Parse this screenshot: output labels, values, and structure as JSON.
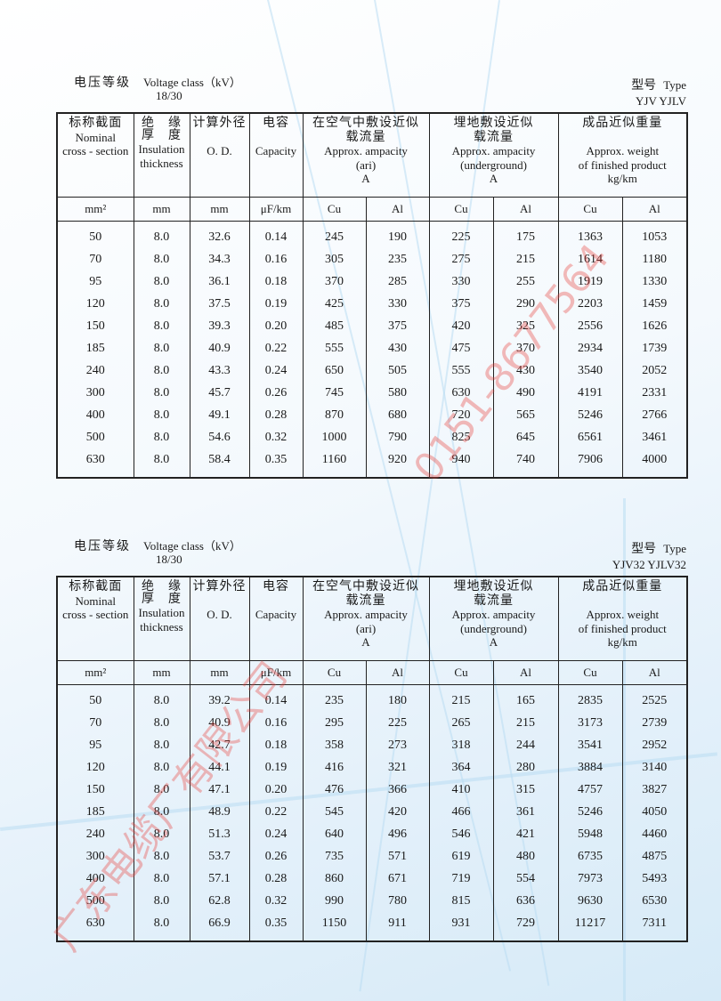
{
  "watermark": {
    "company": "广东电缆厂有限公司",
    "phone": "0151-8677564"
  },
  "headers": {
    "nominal": {
      "zh": "标称截面",
      "en1": "Nominal",
      "en2": "cross - section",
      "unit": "mm²"
    },
    "insulation": {
      "zh1": "绝　缘",
      "zh2": "厚　度",
      "en1": "Insulation",
      "en2": "thickness",
      "unit": "mm"
    },
    "od": {
      "zh": "计算外径",
      "en": "O. D.",
      "unit": "mm"
    },
    "capacity": {
      "zh": "电容",
      "en": "Capacity",
      "unit": "μF/km"
    },
    "air": {
      "zh1": "在空气中敷设近似",
      "zh2": "载流量",
      "en1": "Approx. ampacity",
      "en2": "(ari)",
      "unit": "A"
    },
    "underground": {
      "zh1": "埋地敷设近似",
      "zh2": "载流量",
      "en1": "Approx. ampacity",
      "en2": "(underground)",
      "unit": "A"
    },
    "weight": {
      "zh": "成品近似重量",
      "en1": "Approx. weight",
      "en2": "of finished product",
      "unit": "kg/km"
    },
    "cu": "Cu",
    "al": "Al"
  },
  "tables": [
    {
      "voltage_label_zh": "电压等级",
      "voltage_label_en": "Voltage class（kV）",
      "voltage_value": "18/30",
      "type_label_zh": "型号",
      "type_label_en": "Type",
      "type_value": "YJV  YJLV",
      "rows": [
        [
          "50",
          "8.0",
          "32.6",
          "0.14",
          "245",
          "190",
          "225",
          "175",
          "1363",
          "1053"
        ],
        [
          "70",
          "8.0",
          "34.3",
          "0.16",
          "305",
          "235",
          "275",
          "215",
          "1614",
          "1180"
        ],
        [
          "95",
          "8.0",
          "36.1",
          "0.18",
          "370",
          "285",
          "330",
          "255",
          "1919",
          "1330"
        ],
        [
          "120",
          "8.0",
          "37.5",
          "0.19",
          "425",
          "330",
          "375",
          "290",
          "2203",
          "1459"
        ],
        [
          "150",
          "8.0",
          "39.3",
          "0.20",
          "485",
          "375",
          "420",
          "325",
          "2556",
          "1626"
        ],
        [
          "185",
          "8.0",
          "40.9",
          "0.22",
          "555",
          "430",
          "475",
          "370",
          "2934",
          "1739"
        ],
        [
          "240",
          "8.0",
          "43.3",
          "0.24",
          "650",
          "505",
          "555",
          "430",
          "3540",
          "2052"
        ],
        [
          "300",
          "8.0",
          "45.7",
          "0.26",
          "745",
          "580",
          "630",
          "490",
          "4191",
          "2331"
        ],
        [
          "400",
          "8.0",
          "49.1",
          "0.28",
          "870",
          "680",
          "720",
          "565",
          "5246",
          "2766"
        ],
        [
          "500",
          "8.0",
          "54.6",
          "0.32",
          "1000",
          "790",
          "825",
          "645",
          "6561",
          "3461"
        ],
        [
          "630",
          "8.0",
          "58.4",
          "0.35",
          "1160",
          "920",
          "940",
          "740",
          "7906",
          "4000"
        ]
      ]
    },
    {
      "voltage_label_zh": "电压等级",
      "voltage_label_en": "Voltage class（kV）",
      "voltage_value": "18/30",
      "type_label_zh": "型号",
      "type_label_en": "Type",
      "type_value": "YJV32  YJLV32",
      "rows": [
        [
          "50",
          "8.0",
          "39.2",
          "0.14",
          "235",
          "180",
          "215",
          "165",
          "2835",
          "2525"
        ],
        [
          "70",
          "8.0",
          "40.9",
          "0.16",
          "295",
          "225",
          "265",
          "215",
          "3173",
          "2739"
        ],
        [
          "95",
          "8.0",
          "42.7",
          "0.18",
          "358",
          "273",
          "318",
          "244",
          "3541",
          "2952"
        ],
        [
          "120",
          "8.0",
          "44.1",
          "0.19",
          "416",
          "321",
          "364",
          "280",
          "3884",
          "3140"
        ],
        [
          "150",
          "8.0",
          "47.1",
          "0.20",
          "476",
          "366",
          "410",
          "315",
          "4757",
          "3827"
        ],
        [
          "185",
          "8.0",
          "48.9",
          "0.22",
          "545",
          "420",
          "466",
          "361",
          "5246",
          "4050"
        ],
        [
          "240",
          "8.0",
          "51.3",
          "0.24",
          "640",
          "496",
          "546",
          "421",
          "5948",
          "4460"
        ],
        [
          "300",
          "8.0",
          "53.7",
          "0.26",
          "735",
          "571",
          "619",
          "480",
          "6735",
          "4875"
        ],
        [
          "400",
          "8.0",
          "57.1",
          "0.28",
          "860",
          "671",
          "719",
          "554",
          "7973",
          "5493"
        ],
        [
          "500",
          "8.0",
          "62.8",
          "0.32",
          "990",
          "780",
          "815",
          "636",
          "9630",
          "6530"
        ],
        [
          "630",
          "8.0",
          "66.9",
          "0.35",
          "1150",
          "911",
          "931",
          "729",
          "11217",
          "7311"
        ]
      ]
    }
  ]
}
